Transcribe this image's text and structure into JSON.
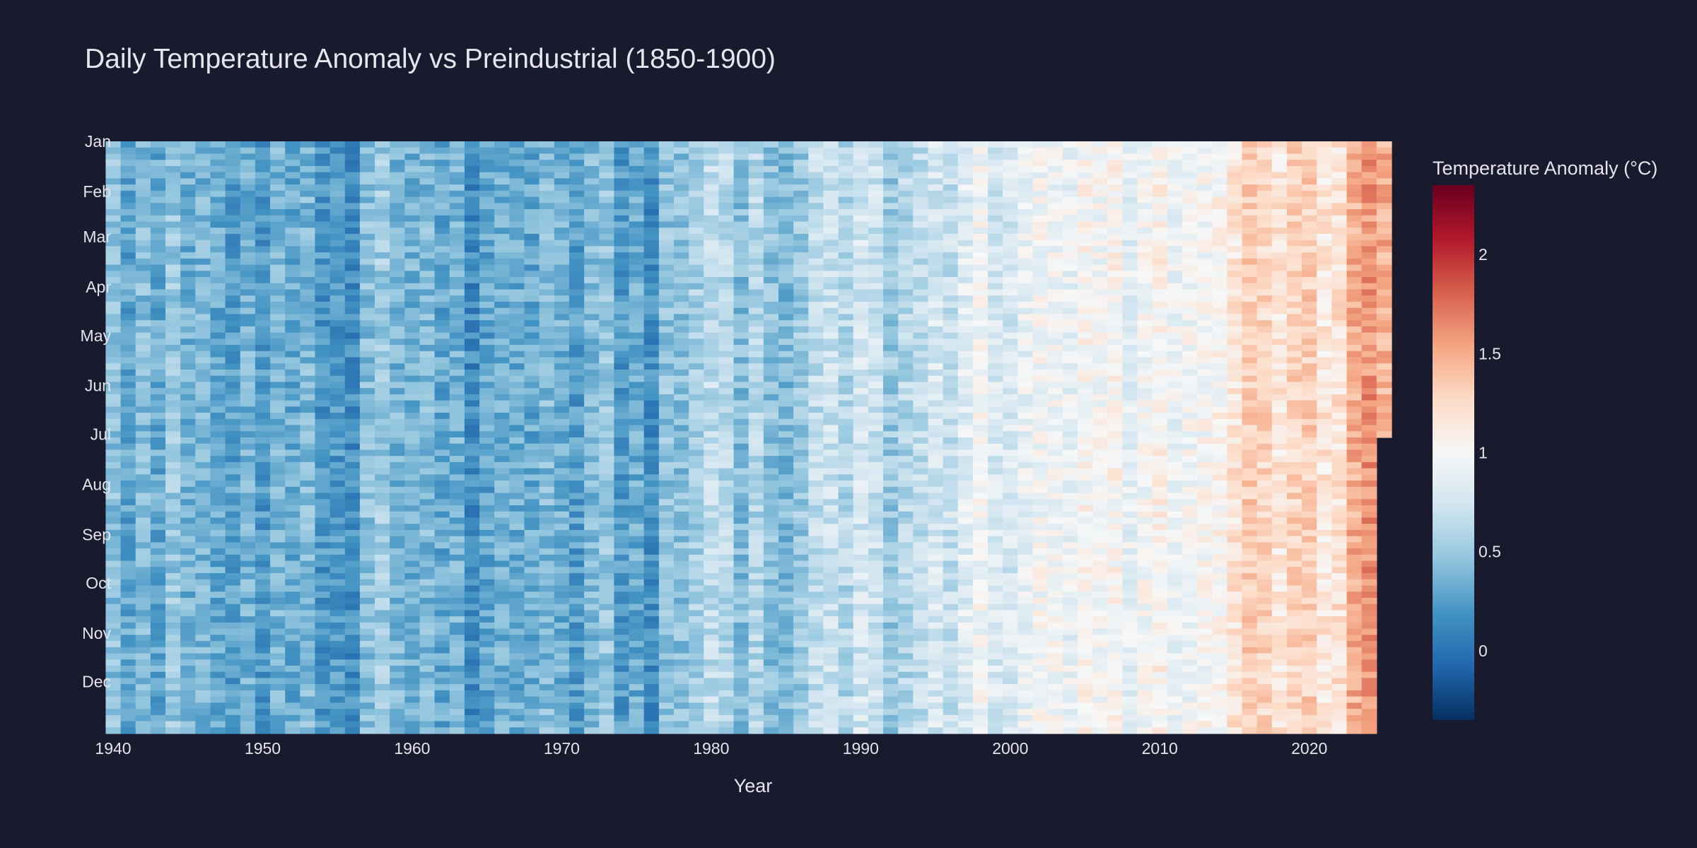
{
  "chart_data": {
    "type": "heatmap",
    "title": "Daily Temperature Anomaly vs Preindustrial (1850-1900)",
    "xlabel": "Year",
    "ylabel": "",
    "x_range": [
      1940,
      2025
    ],
    "x_ticks": [
      "1940",
      "1950",
      "1960",
      "1970",
      "1980",
      "1990",
      "2000",
      "2010",
      "2020"
    ],
    "y_ticks": [
      "Jan",
      "Feb",
      "Mar",
      "Apr",
      "May",
      "Jun",
      "Jul",
      "Aug",
      "Sep",
      "Oct",
      "Nov",
      "Dec"
    ],
    "last_year_partial_through": "Jun",
    "colorscale": "RdBu (reversed)",
    "colorbar": {
      "title": "Temperature Anomaly (°C)",
      "range": [
        -0.35,
        2.35
      ],
      "ticks": [
        "0",
        "0.5",
        "1",
        "1.5",
        "2"
      ]
    },
    "series": [
      {
        "years": [
          1940,
          1941,
          1942,
          1943,
          1944,
          1945,
          1946,
          1947,
          1948,
          1949,
          1950,
          1951,
          1952,
          1953,
          1954,
          1955,
          1956,
          1957,
          1958,
          1959,
          1960,
          1961,
          1962,
          1963,
          1964,
          1965,
          1966,
          1967,
          1968,
          1969,
          1970,
          1971,
          1972,
          1973,
          1974,
          1975,
          1976,
          1977,
          1978,
          1979,
          1980,
          1981,
          1982,
          1983,
          1984,
          1985,
          1986,
          1987,
          1988,
          1989,
          1990,
          1991,
          1992,
          1993,
          1994,
          1995,
          1996,
          1997,
          1998,
          1999,
          2000,
          2001,
          2002,
          2003,
          2004,
          2005,
          2006,
          2007,
          2008,
          2009,
          2010,
          2011,
          2012,
          2013,
          2014,
          2015,
          2016,
          2017,
          2018,
          2019,
          2020,
          2021,
          2022,
          2023,
          2024,
          2025
        ],
        "annual_mean_anomaly_c": [
          0.45,
          0.28,
          0.42,
          0.3,
          0.5,
          0.36,
          0.38,
          0.32,
          0.25,
          0.36,
          0.22,
          0.37,
          0.32,
          0.4,
          0.2,
          0.22,
          0.15,
          0.44,
          0.52,
          0.38,
          0.36,
          0.4,
          0.3,
          0.36,
          0.13,
          0.28,
          0.34,
          0.33,
          0.3,
          0.42,
          0.34,
          0.24,
          0.4,
          0.48,
          0.22,
          0.32,
          0.15,
          0.46,
          0.44,
          0.55,
          0.66,
          0.62,
          0.42,
          0.6,
          0.45,
          0.4,
          0.5,
          0.66,
          0.72,
          0.6,
          0.76,
          0.72,
          0.5,
          0.6,
          0.66,
          0.77,
          0.68,
          0.85,
          0.96,
          0.78,
          0.78,
          0.9,
          0.97,
          0.96,
          0.9,
          1.02,
          0.97,
          1.03,
          0.88,
          0.98,
          1.07,
          0.93,
          0.96,
          1.0,
          1.03,
          1.18,
          1.33,
          1.27,
          1.17,
          1.28,
          1.31,
          1.16,
          1.19,
          1.48,
          1.6,
          1.48
        ]
      }
    ]
  }
}
